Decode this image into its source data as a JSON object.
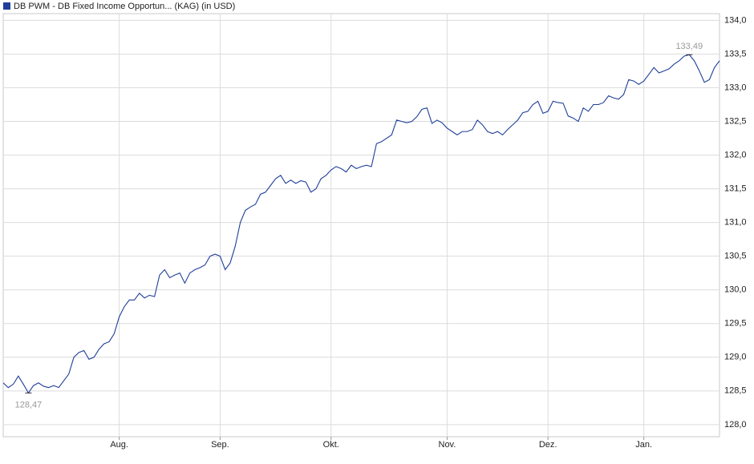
{
  "chart_data": {
    "type": "line",
    "categories": [
      null,
      null,
      null,
      null,
      null,
      null,
      null,
      null,
      null,
      null,
      null,
      null,
      null,
      null,
      null,
      null,
      null,
      null,
      null,
      null,
      null,
      null,
      null,
      "Aug.",
      null,
      null,
      null,
      null,
      null,
      null,
      null,
      null,
      null,
      null,
      null,
      null,
      null,
      null,
      null,
      null,
      null,
      null,
      null,
      "Sep.",
      null,
      null,
      null,
      null,
      null,
      null,
      null,
      null,
      null,
      null,
      null,
      null,
      null,
      null,
      null,
      null,
      null,
      null,
      null,
      null,
      null,
      "Okt.",
      null,
      null,
      null,
      null,
      null,
      null,
      null,
      null,
      null,
      null,
      null,
      null,
      null,
      null,
      null,
      null,
      null,
      null,
      null,
      null,
      null,
      null,
      "Nov.",
      null,
      null,
      null,
      null,
      null,
      null,
      null,
      null,
      null,
      null,
      null,
      null,
      null,
      null,
      null,
      null,
      null,
      null,
      null,
      "Dez.",
      null,
      null,
      null,
      null,
      null,
      null,
      null,
      null,
      null,
      null,
      null,
      null,
      null,
      null,
      null,
      null,
      null,
      null,
      "Jan.",
      null,
      null,
      null,
      null,
      null,
      null,
      null,
      null,
      null,
      null,
      null,
      null,
      null,
      null,
      null
    ],
    "series": [
      {
        "name": "DB PWM - DB Fixed Income Opportun... (KAG) (in USD)",
        "color": "#1f3f99",
        "values": [
          128.62,
          128.55,
          128.6,
          128.72,
          128.6,
          128.47,
          128.58,
          128.62,
          128.57,
          128.55,
          128.58,
          128.55,
          128.65,
          128.75,
          129.0,
          129.07,
          129.1,
          128.97,
          129.0,
          129.12,
          129.2,
          129.23,
          129.35,
          129.6,
          129.75,
          129.85,
          129.85,
          129.95,
          129.88,
          129.92,
          129.9,
          130.22,
          130.3,
          130.18,
          130.22,
          130.25,
          130.1,
          130.25,
          130.3,
          130.33,
          130.37,
          130.5,
          130.53,
          130.5,
          130.3,
          130.4,
          130.65,
          131.0,
          131.18,
          131.23,
          131.27,
          131.42,
          131.45,
          131.55,
          131.65,
          131.7,
          131.58,
          131.63,
          131.58,
          131.62,
          131.6,
          131.45,
          131.5,
          131.65,
          131.7,
          131.78,
          131.83,
          131.8,
          131.75,
          131.85,
          131.8,
          131.83,
          131.85,
          131.83,
          132.17,
          132.2,
          132.25,
          132.3,
          132.52,
          132.5,
          132.48,
          132.5,
          132.57,
          132.68,
          132.7,
          132.47,
          132.52,
          132.48,
          132.4,
          132.35,
          132.3,
          132.35,
          132.35,
          132.38,
          132.52,
          132.45,
          132.35,
          132.32,
          132.35,
          132.3,
          132.38,
          132.45,
          132.52,
          132.63,
          132.65,
          132.75,
          132.8,
          132.62,
          132.65,
          132.8,
          132.78,
          132.77,
          132.58,
          132.55,
          132.5,
          132.7,
          132.65,
          132.75,
          132.75,
          132.78,
          132.88,
          132.85,
          132.83,
          132.9,
          133.12,
          133.1,
          133.05,
          133.1,
          133.2,
          133.3,
          133.22,
          133.25,
          133.28,
          133.35,
          133.4,
          133.47,
          133.49,
          133.4,
          133.25,
          133.08,
          133.12,
          133.3,
          133.4
        ],
        "value_labels": [
          null,
          null,
          null,
          null,
          null,
          "128,47",
          null,
          null,
          null,
          null,
          null,
          null,
          null,
          null,
          null,
          null,
          null,
          null,
          null,
          null,
          null,
          null,
          null,
          null,
          null,
          null,
          null,
          null,
          null,
          null,
          null,
          null,
          null,
          null,
          null,
          null,
          null,
          null,
          null,
          null,
          null,
          null,
          null,
          null,
          null,
          null,
          null,
          null,
          null,
          null,
          null,
          null,
          null,
          null,
          null,
          null,
          null,
          null,
          null,
          null,
          null,
          null,
          null,
          null,
          null,
          null,
          null,
          null,
          null,
          null,
          null,
          null,
          null,
          null,
          null,
          null,
          null,
          null,
          null,
          null,
          null,
          null,
          null,
          null,
          null,
          null,
          null,
          null,
          null,
          null,
          null,
          null,
          null,
          null,
          null,
          null,
          null,
          null,
          null,
          null,
          null,
          null,
          null,
          null,
          null,
          null,
          null,
          null,
          null,
          null,
          null,
          null,
          null,
          null,
          null,
          null,
          null,
          null,
          null,
          null,
          null,
          null,
          null,
          null,
          null,
          null,
          null,
          null,
          null,
          null,
          null,
          null,
          null,
          null,
          null,
          null,
          "133,49",
          null,
          null,
          null,
          null,
          null,
          null
        ]
      }
    ],
    "ylim": [
      127.82,
      134.1
    ],
    "yticks": [
      {
        "value": 128,
        "label": "128,0"
      },
      {
        "value": 128.5,
        "label": "128,5"
      },
      {
        "value": 129,
        "label": "129,0"
      },
      {
        "value": 129.5,
        "label": "129,5"
      },
      {
        "value": 130,
        "label": "130,0"
      },
      {
        "value": 130.5,
        "label": "130,5"
      },
      {
        "value": 131,
        "label": "131,0"
      },
      {
        "value": 131.5,
        "label": "131,5"
      },
      {
        "value": 132,
        "label": "132,0"
      },
      {
        "value": 132.5,
        "label": "132,5"
      },
      {
        "value": 133,
        "label": "133,0"
      },
      {
        "value": 133.5,
        "label": "133,5"
      },
      {
        "value": 134,
        "label": "134,0"
      }
    ],
    "grid": true
  }
}
